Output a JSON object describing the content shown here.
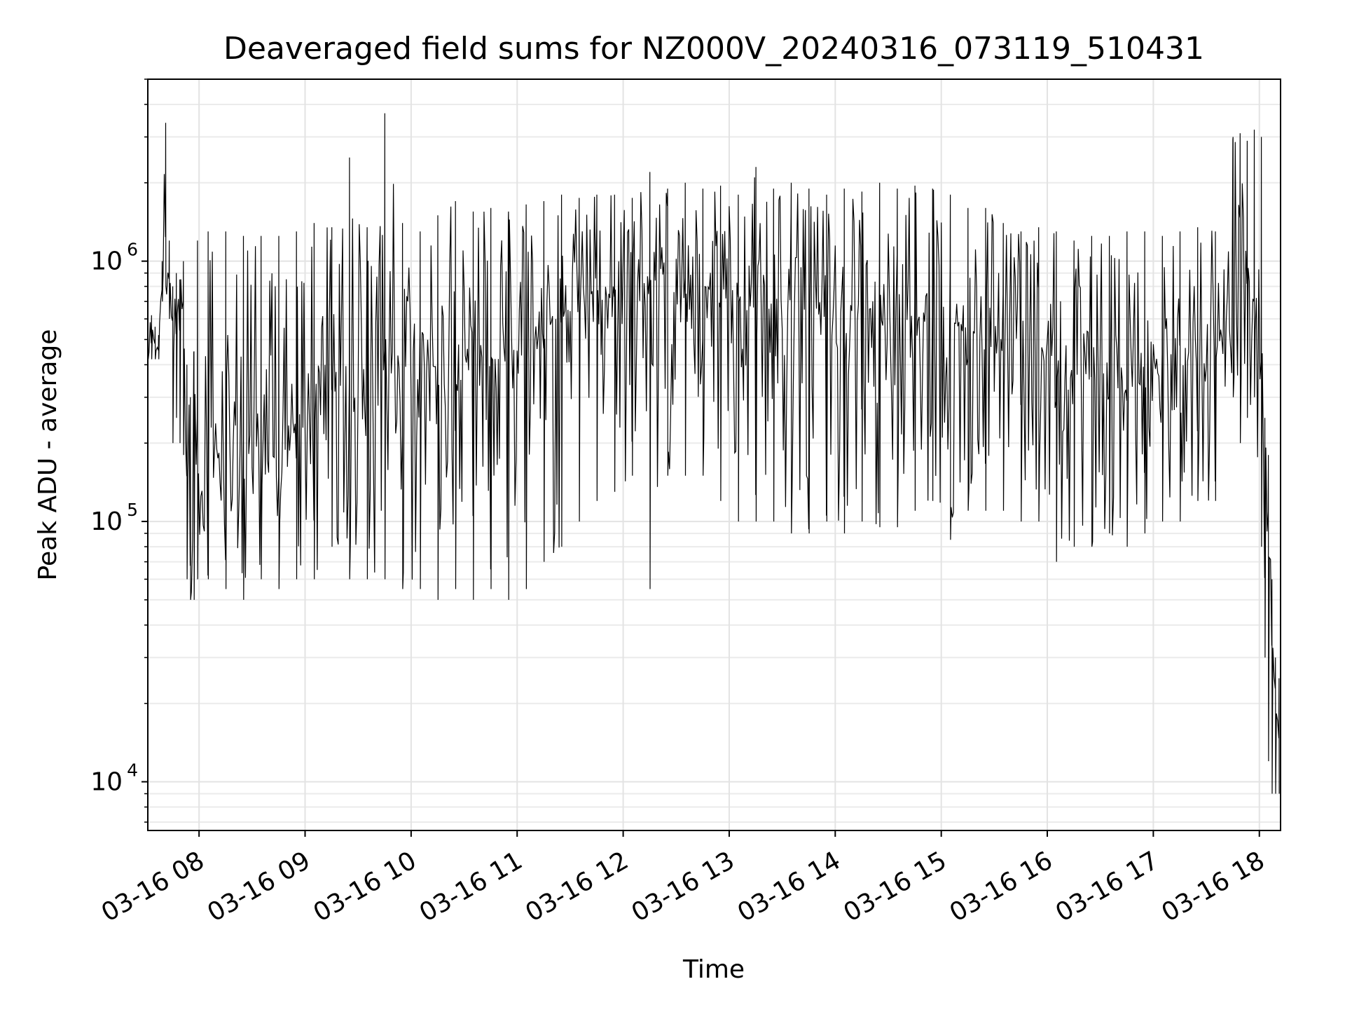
{
  "chart_data": {
    "type": "line",
    "title": "Deaveraged field sums for NZ000V_20240316_073119_510431",
    "xlabel": "Time",
    "ylabel": "Peak ADU - average",
    "yscale": "log",
    "xlim": [
      "2024-03-16 07:31",
      "2024-03-16 18:12"
    ],
    "ylim": [
      6500,
      5000000
    ],
    "grid": true,
    "line_color": "#000000",
    "x_ticks": [
      "03-16 08",
      "03-16 09",
      "03-16 10",
      "03-16 11",
      "03-16 12",
      "03-16 13",
      "03-16 14",
      "03-16 15",
      "03-16 16",
      "03-16 17",
      "03-16 18"
    ],
    "y_ticks": [
      {
        "value": 10000,
        "base": "10",
        "exp": "4"
      },
      {
        "value": 100000,
        "base": "10",
        "exp": "5"
      },
      {
        "value": 1000000,
        "base": "10",
        "exp": "6"
      }
    ],
    "series": [
      {
        "x": [
          "07:31",
          "07:33",
          "07:35",
          "07:37",
          "07:39",
          "07:41",
          "07:43",
          "07:45",
          "07:47",
          "07:49",
          "07:51",
          "07:53",
          "07:55",
          "07:57",
          "07:59",
          "08:05",
          "08:15",
          "08:25",
          "08:35",
          "08:45",
          "08:55",
          "09:05",
          "09:15",
          "09:25",
          "09:35",
          "09:45",
          "09:55",
          "10:05",
          "10:15",
          "10:25",
          "10:35",
          "10:45",
          "10:55",
          "11:05",
          "11:15",
          "11:25",
          "11:35",
          "11:45",
          "11:55",
          "12:05",
          "12:15",
          "12:25",
          "12:35",
          "12:45",
          "12:55",
          "13:05",
          "13:15",
          "13:25",
          "13:35",
          "13:45",
          "13:55",
          "14:05",
          "14:15",
          "14:25",
          "14:35",
          "14:45",
          "14:55",
          "15:05",
          "15:15",
          "15:25",
          "15:35",
          "15:45",
          "15:55",
          "16:05",
          "16:15",
          "16:25",
          "16:35",
          "16:45",
          "16:55",
          "17:05",
          "17:15",
          "17:25",
          "17:35",
          "17:45",
          "17:49",
          "17:53",
          "17:57",
          "18:01",
          "18:03",
          "18:05",
          "18:07",
          "18:09",
          "18:11"
        ],
        "y": [
          500000,
          550000,
          480000,
          450000,
          900000,
          1100000,
          850000,
          500000,
          600000,
          550000,
          650000,
          150000,
          100000,
          120000,
          130000,
          200000,
          180000,
          220000,
          200000,
          180000,
          200000,
          250000,
          300000,
          350000,
          400000,
          450000,
          380000,
          350000,
          380000,
          400000,
          450000,
          420000,
          400000,
          450000,
          550000,
          600000,
          650000,
          700000,
          750000,
          800000,
          850000,
          800000,
          750000,
          800000,
          780000,
          750000,
          700000,
          720000,
          700000,
          650000,
          600000,
          600000,
          620000,
          600000,
          580000,
          600000,
          620000,
          600000,
          550000,
          520000,
          500000,
          480000,
          450000,
          420000,
          380000,
          350000,
          330000,
          320000,
          350000,
          380000,
          400000,
          420000,
          450000,
          600000,
          1200000,
          800000,
          700000,
          600000,
          250000,
          100000,
          40000,
          20000,
          15000
        ],
        "lows": [
          420000,
          420000,
          420000,
          420000,
          700000,
          800000,
          600000,
          200000,
          250000,
          200000,
          180000,
          60000,
          50000,
          50000,
          60000,
          60000,
          55000,
          50000,
          60000,
          55000,
          60000,
          60000,
          80000,
          60000,
          60000,
          60000,
          55000,
          55000,
          50000,
          55000,
          50000,
          55000,
          50000,
          55000,
          70000,
          80000,
          100000,
          120000,
          130000,
          150000,
          55000,
          150000,
          150000,
          150000,
          120000,
          100000,
          100000,
          100000,
          90000,
          90000,
          100000,
          90000,
          100000,
          95000,
          95000,
          110000,
          120000,
          85000,
          110000,
          110000,
          110000,
          100000,
          100000,
          70000,
          80000,
          80000,
          90000,
          80000,
          90000,
          100000,
          100000,
          120000,
          120000,
          300000,
          200000,
          250000,
          300000,
          80000,
          30000,
          12000,
          9000,
          9000,
          9000
        ],
        "highs": [
          600000,
          620000,
          560000,
          520000,
          1000000,
          3400000,
          1200000,
          800000,
          900000,
          850000,
          1000000,
          400000,
          300000,
          450000,
          1200000,
          1300000,
          1300000,
          1250000,
          1250000,
          1250000,
          1300000,
          1400000,
          1350000,
          2500000,
          1350000,
          3700000,
          1400000,
          1300000,
          1500000,
          1700000,
          1550000,
          1600000,
          1550000,
          1650000,
          1700000,
          1800000,
          1750000,
          1800000,
          1800000,
          1750000,
          2200000,
          1900000,
          2000000,
          1900000,
          1950000,
          1800000,
          2300000,
          1900000,
          2000000,
          1900000,
          1800000,
          1900000,
          1850000,
          2000000,
          1900000,
          1950000,
          1900000,
          1800000,
          1600000,
          1600000,
          1400000,
          1300000,
          1350000,
          1300000,
          1200000,
          1250000,
          1250000,
          1300000,
          1300000,
          1250000,
          1300000,
          1350000,
          1300000,
          3000000,
          3100000,
          2900000,
          3200000,
          3000000,
          250000,
          180000,
          60000,
          30000,
          25000
        ]
      }
    ]
  }
}
